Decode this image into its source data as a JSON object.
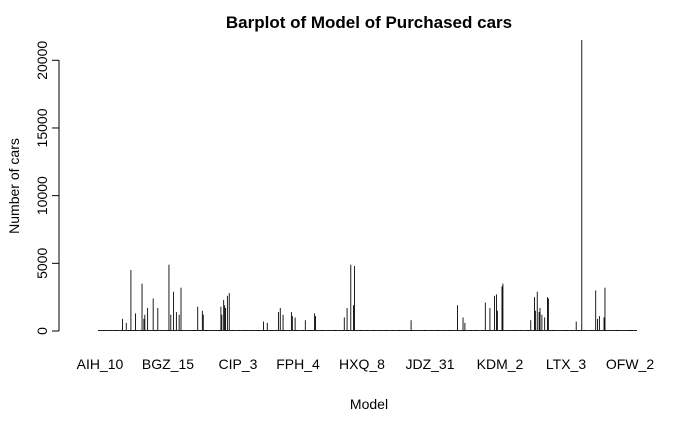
{
  "chart_data": {
    "type": "bar",
    "title": "Barplot of Model of Purchased cars",
    "xlabel": "Model",
    "ylabel": "Number of cars",
    "ylim": [
      0,
      21500
    ],
    "yticks": [
      0,
      5000,
      10000,
      15000,
      20000
    ],
    "xtick_labels": [
      "AIH_10",
      "BGZ_15",
      "CIP_3",
      "FPH_4",
      "HXQ_8",
      "JDZ_31",
      "KDM_2",
      "LTX_3",
      "OFW_2"
    ],
    "n_bars": 540,
    "values": [
      0,
      0,
      0,
      0,
      0,
      0,
      0,
      0,
      0,
      0,
      0,
      0,
      0,
      0,
      0,
      0,
      0,
      0,
      0,
      0,
      0,
      0,
      0,
      0,
      0,
      0,
      900,
      0,
      0,
      0,
      600,
      0,
      0,
      0,
      0,
      4500,
      0,
      0,
      0,
      0,
      1300,
      0,
      0,
      0,
      0,
      0,
      0,
      3500,
      0,
      900,
      1200,
      0,
      0,
      1700,
      0,
      0,
      0,
      0,
      0,
      2400,
      0,
      0,
      0,
      0,
      1700,
      0,
      0,
      0,
      0,
      0,
      0,
      0,
      0,
      0,
      0,
      0,
      4900,
      0,
      1200,
      0,
      0,
      2900,
      0,
      0,
      1400,
      0,
      0,
      1200,
      0,
      3200,
      0,
      0,
      0,
      0,
      0,
      0,
      0,
      0,
      0,
      0,
      0,
      0,
      0,
      0,
      0,
      0,
      0,
      1800,
      0,
      0,
      0,
      0,
      1500,
      1200,
      0,
      0,
      0,
      0,
      0,
      0,
      0,
      0,
      0,
      0,
      0,
      0,
      0,
      0,
      0,
      0,
      0,
      0,
      1800,
      1200,
      0,
      2300,
      1900,
      1700,
      0,
      2600,
      0,
      2800,
      0,
      0,
      0,
      0,
      0,
      0,
      0,
      0,
      0,
      0,
      0,
      0,
      0,
      0,
      0,
      0,
      0,
      0,
      0,
      0,
      0,
      0,
      0,
      0,
      0,
      0,
      0,
      0,
      0,
      0,
      0,
      0,
      0,
      0,
      0,
      0,
      700,
      0,
      0,
      0,
      600,
      0,
      0,
      0,
      0,
      0,
      0,
      0,
      0,
      0,
      0,
      0,
      1400,
      0,
      1700,
      0,
      0,
      1200,
      0,
      0,
      0,
      0,
      0,
      0,
      0,
      0,
      1400,
      1100,
      0,
      0,
      1000,
      0,
      0,
      0,
      0,
      0,
      0,
      0,
      0,
      0,
      0,
      800,
      0,
      0,
      0,
      0,
      0,
      0,
      0,
      0,
      0,
      1300,
      1100,
      0,
      0,
      0,
      0,
      0,
      0,
      0,
      0,
      0,
      0,
      0,
      0,
      0,
      0,
      0,
      0,
      0,
      0,
      0,
      0,
      0,
      0,
      0,
      0,
      0,
      0,
      0,
      0,
      0,
      0,
      1000,
      0,
      0,
      1700,
      0,
      0,
      0,
      4900,
      0,
      0,
      1900,
      4800,
      0,
      0,
      0,
      0,
      0,
      0,
      0,
      0,
      0,
      0,
      0,
      0,
      0,
      0,
      0,
      0,
      0,
      0,
      0,
      0,
      0,
      0,
      0,
      0,
      0,
      0,
      0,
      0,
      0,
      0,
      0,
      0,
      0,
      0,
      0,
      0,
      0,
      0,
      0,
      0,
      0,
      0,
      0,
      0,
      0,
      0,
      0,
      0,
      0,
      0,
      0,
      0,
      0,
      0,
      0,
      0,
      0,
      0,
      0,
      0,
      800,
      0,
      0,
      0,
      0,
      0,
      0,
      0,
      0,
      0,
      0,
      0,
      0,
      0,
      0,
      0,
      0,
      0,
      0,
      0,
      0,
      0,
      0,
      0,
      0,
      0,
      0,
      0,
      0,
      0,
      0,
      0,
      0,
      0,
      0,
      0,
      0,
      0,
      0,
      0,
      0,
      0,
      0,
      0,
      0,
      0,
      0,
      0,
      0,
      0,
      1900,
      0,
      0,
      0,
      0,
      0,
      1000,
      0,
      600,
      0,
      0,
      0,
      0,
      0,
      0,
      0,
      0,
      0,
      0,
      0,
      0,
      0,
      0,
      0,
      0,
      0,
      0,
      0,
      0,
      0,
      2100,
      0,
      0,
      0,
      0,
      1700,
      0,
      0,
      0,
      0,
      2600,
      0,
      2700,
      1500,
      0,
      0,
      0,
      0,
      3300,
      3500,
      0,
      0,
      0,
      0,
      0,
      0,
      0,
      0,
      0,
      0,
      0,
      0,
      0,
      0,
      0,
      0,
      0,
      0,
      0,
      0,
      0,
      0,
      0,
      0,
      0,
      0,
      0,
      0,
      0,
      800,
      0,
      0,
      0,
      2500,
      1500,
      0,
      2900,
      0,
      1400,
      1700,
      0,
      1200,
      0,
      0,
      1000,
      0,
      0,
      2500,
      2400,
      0,
      0,
      0,
      0,
      0,
      0,
      0,
      0,
      0,
      0,
      0,
      0,
      0,
      0,
      0,
      0,
      0,
      0,
      0,
      0,
      0,
      0,
      0,
      0,
      0,
      0,
      0,
      0,
      0,
      700,
      0,
      0,
      0,
      0,
      0,
      21500,
      0,
      0,
      0,
      0,
      0,
      0,
      0,
      0,
      0,
      0,
      0,
      0,
      0,
      0,
      3000,
      0,
      900,
      0,
      1100,
      0,
      0,
      0,
      0,
      1000,
      3200,
      0,
      0,
      0,
      0,
      0,
      0,
      0,
      0,
      0,
      0,
      0,
      0,
      0,
      0,
      0,
      0,
      0,
      0,
      0,
      0,
      0,
      0,
      0,
      0,
      0,
      0,
      0,
      0,
      0,
      0,
      0,
      0,
      0,
      0
    ]
  }
}
